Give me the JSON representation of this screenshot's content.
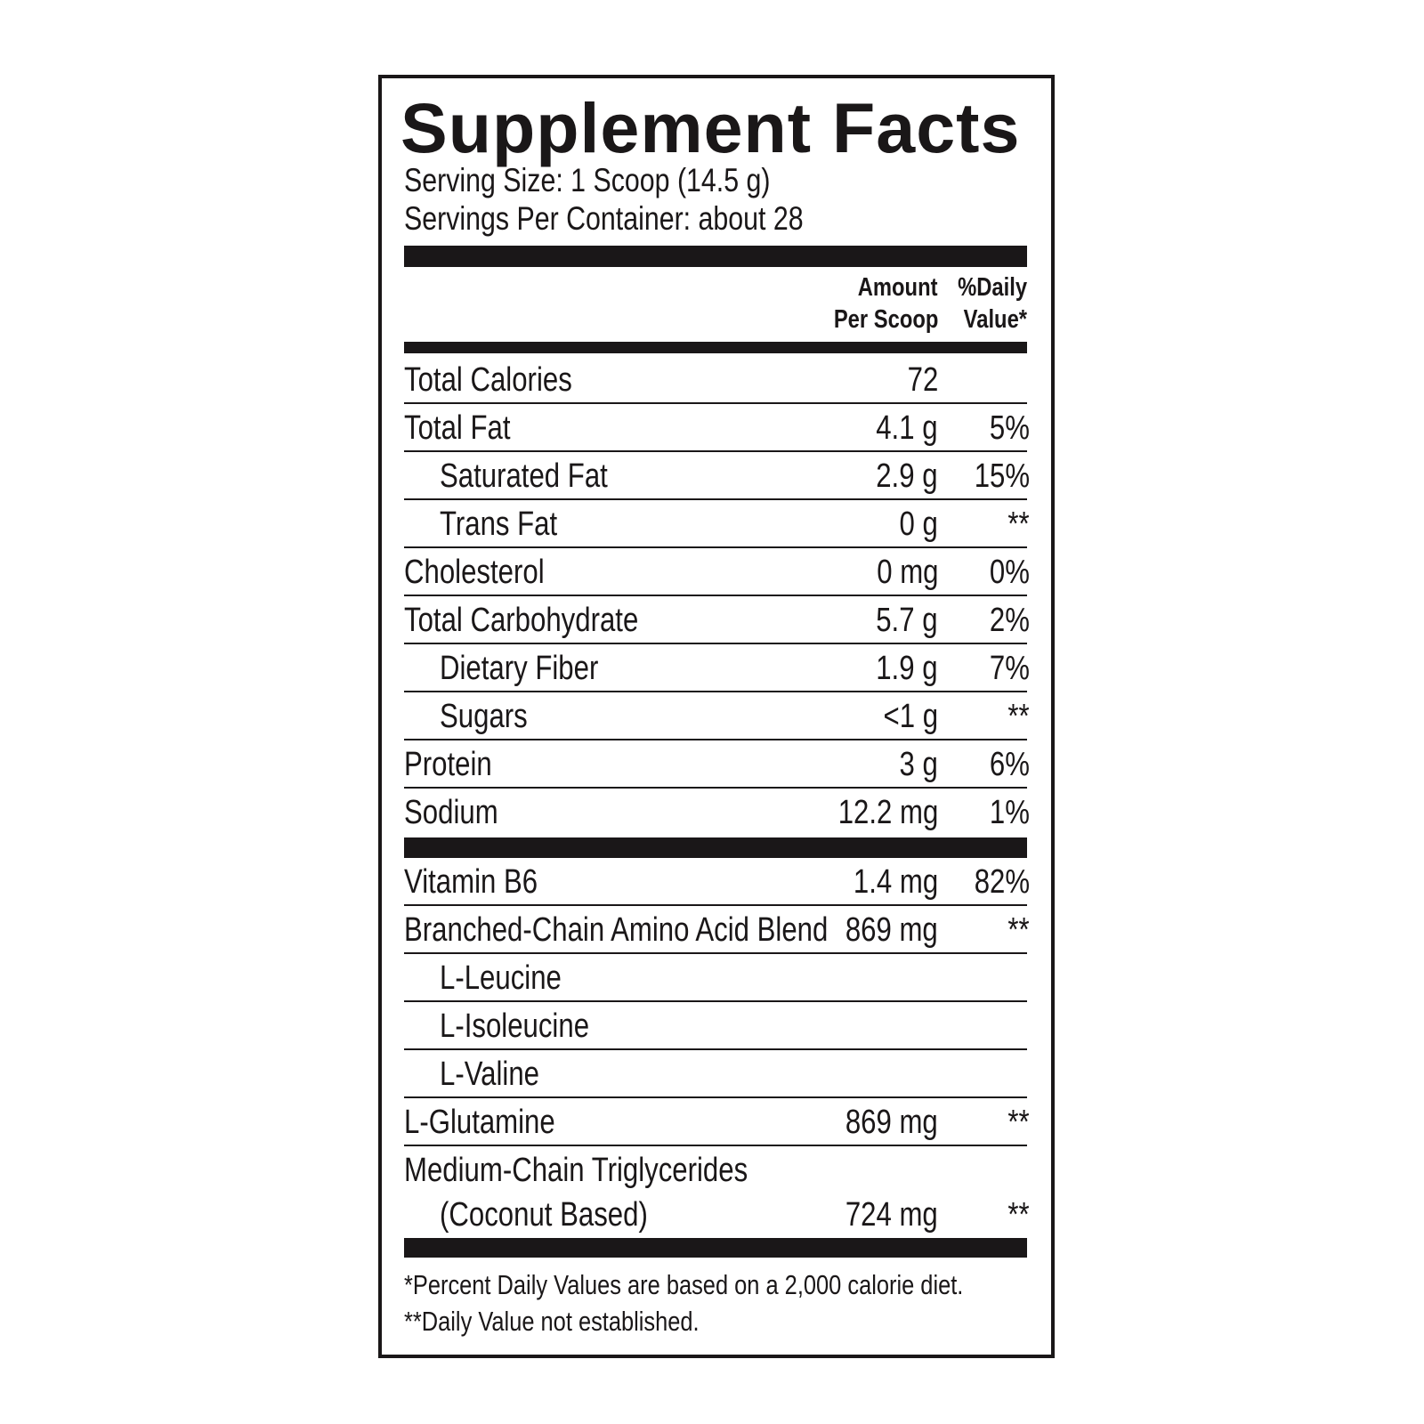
{
  "title": "Supplement Facts",
  "serving_size": "Serving Size: 1 Scoop (14.5 g)",
  "servings_per_container": "Servings Per Container: about 28",
  "header": {
    "amount_line1": "Amount",
    "amount_line2": "Per Scoop",
    "dv_line1": "%Daily",
    "dv_line2": "Value*"
  },
  "nutrients": [
    {
      "label": "Total Calories",
      "amount": "72",
      "dv": "",
      "indent": false
    },
    {
      "label": "Total Fat",
      "amount": "4.1 g",
      "dv": "5%",
      "indent": false
    },
    {
      "label": "Saturated Fat",
      "amount": "2.9 g",
      "dv": "15%",
      "indent": true
    },
    {
      "label": "Trans Fat",
      "amount": "0 g",
      "dv": "**",
      "indent": true
    },
    {
      "label": "Cholesterol",
      "amount": "0 mg",
      "dv": "0%",
      "indent": false
    },
    {
      "label": "Total Carbohydrate",
      "amount": "5.7 g",
      "dv": "2%",
      "indent": false
    },
    {
      "label": "Dietary Fiber",
      "amount": "1.9 g",
      "dv": "7%",
      "indent": true
    },
    {
      "label": "Sugars",
      "amount": "<1 g",
      "dv": "**",
      "indent": true
    },
    {
      "label": "Protein",
      "amount": "3 g",
      "dv": "6%",
      "indent": false
    },
    {
      "label": "Sodium",
      "amount": "12.2 mg",
      "dv": "1%",
      "indent": false
    }
  ],
  "ingredients": [
    {
      "label": "Vitamin B6",
      "amount": "1.4 mg",
      "dv": "82%",
      "indent": false
    },
    {
      "label": "Branched-Chain Amino Acid Blend",
      "amount": "869 mg",
      "dv": "**",
      "indent": false
    },
    {
      "label": "L-Leucine",
      "amount": "",
      "dv": "",
      "indent": true
    },
    {
      "label": "L-Isoleucine",
      "amount": "",
      "dv": "",
      "indent": true
    },
    {
      "label": "L-Valine",
      "amount": "",
      "dv": "",
      "indent": true
    },
    {
      "label": "L-Glutamine",
      "amount": "869 mg",
      "dv": "**",
      "indent": false
    },
    {
      "label": "Medium-Chain Triglycerides",
      "label_line2": "(Coconut Based)",
      "amount": "724 mg",
      "dv": "**",
      "indent": false
    }
  ],
  "footnotes": [
    "*Percent Daily Values are based on a 2,000 calorie diet.",
    "**Daily Value not established."
  ]
}
